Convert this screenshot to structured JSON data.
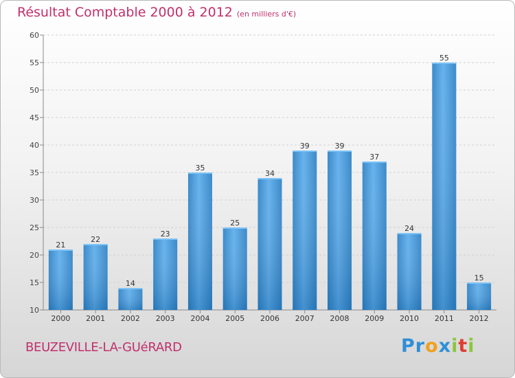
{
  "chart_data": {
    "type": "bar",
    "title": "Résultat Comptable 2000 à 2012",
    "subtitle": "(en milliers d'€)",
    "categories": [
      "2000",
      "2001",
      "2002",
      "2003",
      "2004",
      "2005",
      "2006",
      "2007",
      "2008",
      "2009",
      "2010",
      "2011",
      "2012"
    ],
    "values": [
      21,
      22,
      14,
      23,
      35,
      25,
      34,
      39,
      39,
      37,
      24,
      55,
      15
    ],
    "ylim": [
      10,
      60
    ],
    "yticks": [
      10,
      15,
      20,
      25,
      30,
      35,
      40,
      45,
      50,
      55,
      60
    ],
    "xlabel": "",
    "ylabel": "",
    "grid": true,
    "bar_color": "#3d94d6"
  },
  "footer": {
    "commune": "BEUZEVILLE-LA-GUéRARD",
    "logo_letters": [
      "P",
      "r",
      "o",
      "x",
      "i",
      "t",
      "i"
    ],
    "logo_colors": [
      "#2f8fd8",
      "#2f8fd8",
      "#f0a020",
      "#2f8fd8",
      "#8cc63f",
      "#e03c31",
      "#8cc63f"
    ]
  }
}
